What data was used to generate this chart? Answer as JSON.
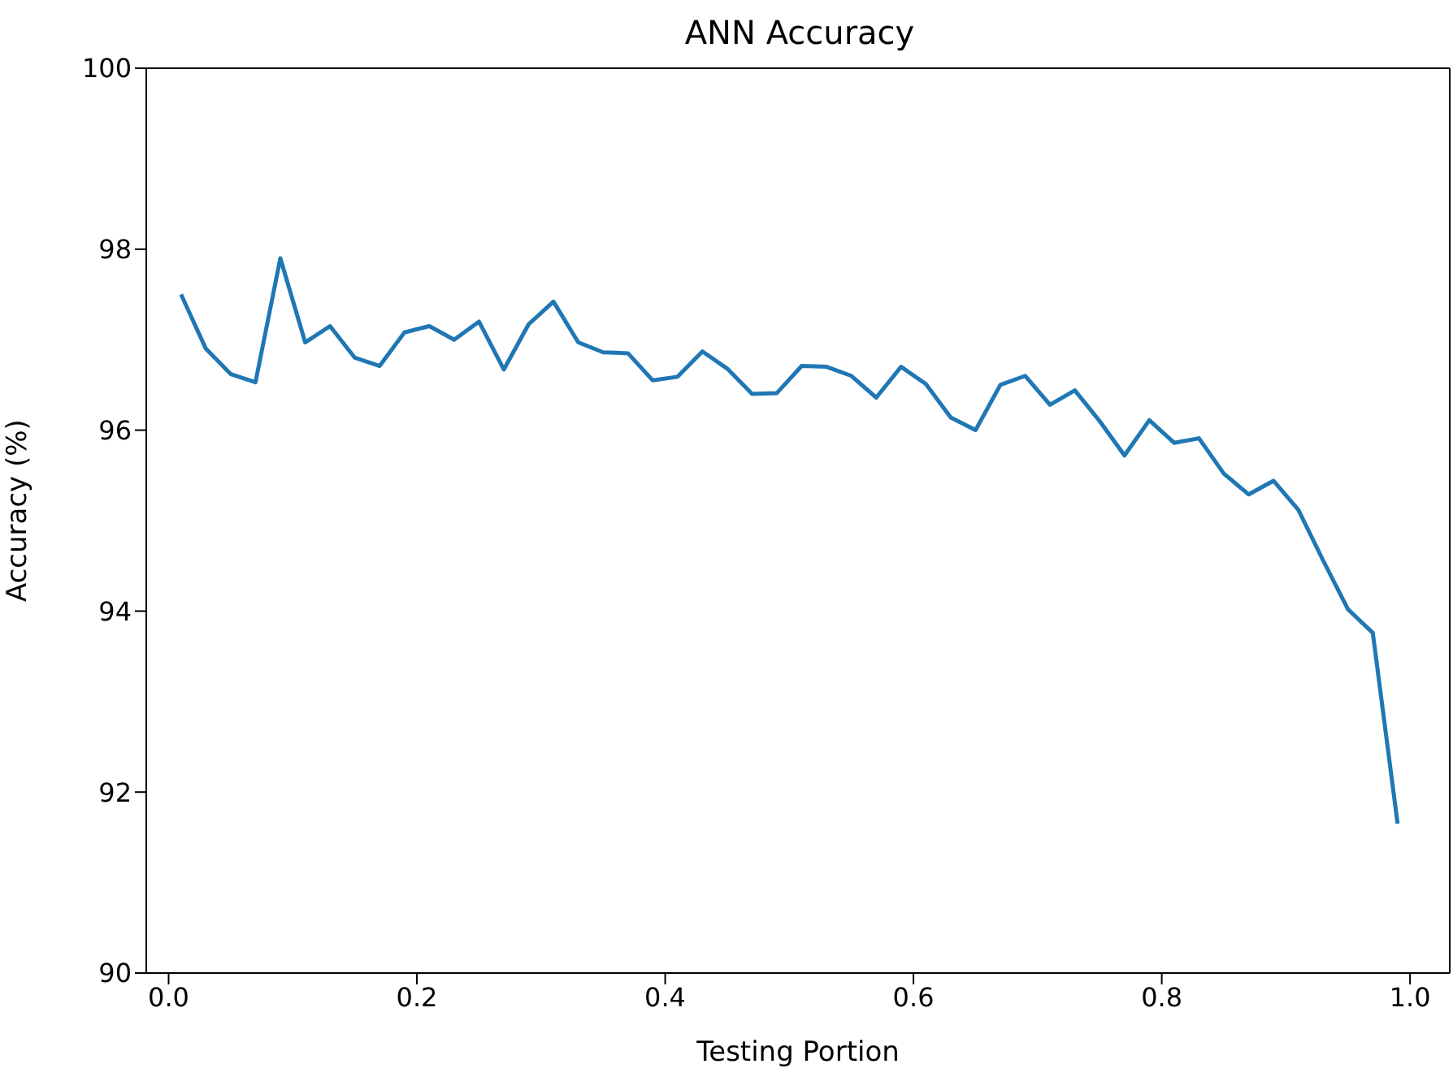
{
  "chart_data": {
    "type": "line",
    "title": "ANN Accuracy",
    "xlabel": "Testing Portion",
    "ylabel": "Accuracy (%)",
    "x": [
      0.01,
      0.03,
      0.05,
      0.07,
      0.09,
      0.11,
      0.13,
      0.15,
      0.17,
      0.19,
      0.21,
      0.23,
      0.25,
      0.27,
      0.29,
      0.31,
      0.33,
      0.35,
      0.37,
      0.39,
      0.41,
      0.43,
      0.45,
      0.47,
      0.49,
      0.51,
      0.53,
      0.55,
      0.57,
      0.59,
      0.61,
      0.63,
      0.65,
      0.67,
      0.69,
      0.71,
      0.73,
      0.75,
      0.77,
      0.79,
      0.81,
      0.83,
      0.85,
      0.87,
      0.89,
      0.91,
      0.93,
      0.95,
      0.97,
      0.99
    ],
    "series": [
      {
        "color": "#1f77b4",
        "values": [
          97.5,
          96.9,
          96.62,
          96.53,
          97.9,
          96.97,
          97.15,
          96.8,
          96.71,
          97.08,
          97.15,
          97.0,
          97.2,
          96.67,
          97.17,
          97.42,
          96.97,
          96.86,
          96.85,
          96.55,
          96.59,
          96.87,
          96.68,
          96.4,
          96.41,
          96.71,
          96.7,
          96.6,
          96.36,
          96.7,
          96.51,
          96.14,
          96.0,
          96.5,
          96.6,
          96.28,
          96.44,
          96.1,
          95.72,
          96.11,
          95.86,
          95.91,
          95.52,
          95.29,
          95.44,
          95.12,
          94.56,
          94.02,
          93.76,
          91.65
        ]
      }
    ],
    "xlim": [
      -0.018,
      1.032
    ],
    "xticks": [
      {
        "value": 0,
        "label": "0.0"
      },
      0.2,
      0.4,
      0.6,
      0.8,
      {
        "value": 1,
        "label": "1.0"
      }
    ],
    "ylim": [
      90,
      100
    ],
    "yticks": [
      90,
      92,
      94,
      96,
      98,
      100
    ],
    "grid": false,
    "legend": false,
    "marker": "none",
    "line_style": "solid"
  }
}
